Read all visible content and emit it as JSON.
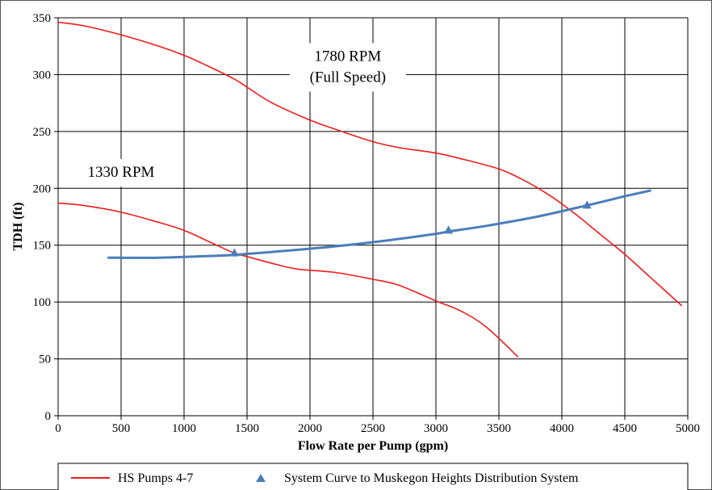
{
  "chart_data": {
    "type": "line",
    "title": "",
    "xlabel": "Flow Rate per Pump (gpm)",
    "ylabel": "TDH (ft)",
    "xlim": [
      0,
      5000
    ],
    "ylim": [
      0,
      350
    ],
    "x_ticks": [
      0,
      500,
      1000,
      1500,
      2000,
      2500,
      3000,
      3500,
      4000,
      4500,
      5000
    ],
    "y_ticks": [
      0,
      50,
      100,
      150,
      200,
      250,
      300,
      350
    ],
    "grid": true,
    "legend_position": "bottom",
    "annotations": [
      {
        "lines": [
          "1780 RPM",
          "(Full Speed)"
        ],
        "x": 2300,
        "y": 305
      },
      {
        "lines": [
          "1330 RPM"
        ],
        "x": 500,
        "y": 203
      }
    ],
    "series": [
      {
        "name": "HS Pumps 4-7",
        "curve": "1780 RPM",
        "color": "#ee1c1c",
        "marker": "none",
        "points": [
          [
            0,
            346
          ],
          [
            200,
            343
          ],
          [
            500,
            335
          ],
          [
            800,
            325
          ],
          [
            1000,
            317
          ],
          [
            1200,
            307
          ],
          [
            1400,
            296
          ],
          [
            1500,
            289
          ],
          [
            1700,
            275
          ],
          [
            2000,
            260
          ],
          [
            2200,
            252
          ],
          [
            2500,
            241
          ],
          [
            2700,
            236
          ],
          [
            3000,
            231
          ],
          [
            3200,
            226
          ],
          [
            3500,
            217
          ],
          [
            3700,
            207
          ],
          [
            3900,
            194
          ],
          [
            4100,
            178
          ],
          [
            4300,
            160
          ],
          [
            4500,
            142
          ],
          [
            4700,
            122
          ],
          [
            4950,
            97
          ]
        ]
      },
      {
        "name": "HS Pumps 4-7",
        "curve": "1330 RPM",
        "color": "#ee1c1c",
        "marker": "none",
        "points": [
          [
            0,
            187
          ],
          [
            200,
            185
          ],
          [
            500,
            179
          ],
          [
            800,
            170
          ],
          [
            1000,
            163
          ],
          [
            1200,
            153
          ],
          [
            1400,
            143
          ],
          [
            1500,
            140
          ],
          [
            1700,
            134
          ],
          [
            1900,
            129
          ],
          [
            2200,
            126
          ],
          [
            2500,
            120
          ],
          [
            2700,
            115
          ],
          [
            3000,
            101
          ],
          [
            3200,
            92
          ],
          [
            3400,
            78
          ],
          [
            3650,
            52
          ]
        ]
      },
      {
        "name": "System Curve to Muskegon Heights Distribution System",
        "color": "#4a7ebb",
        "marker": "triangle",
        "points": [
          [
            400,
            139
          ],
          [
            800,
            139
          ],
          [
            1200,
            140.5
          ],
          [
            1400,
            141.5
          ],
          [
            1800,
            145
          ],
          [
            2200,
            149
          ],
          [
            2600,
            154
          ],
          [
            3000,
            160
          ],
          [
            3100,
            162
          ],
          [
            3400,
            167
          ],
          [
            3800,
            175
          ],
          [
            4200,
            185
          ],
          [
            4500,
            193
          ],
          [
            4700,
            198
          ]
        ],
        "markers": [
          [
            1400,
            143
          ],
          [
            3100,
            163
          ],
          [
            4200,
            185
          ]
        ]
      }
    ]
  },
  "legend": {
    "items": [
      {
        "label": "HS Pumps 4-7",
        "color": "#ee1c1c",
        "symbol": "line"
      },
      {
        "label": "System Curve to Muskegon Heights Distribution System",
        "color": "#4a7ebb",
        "symbol": "triangle"
      }
    ]
  }
}
